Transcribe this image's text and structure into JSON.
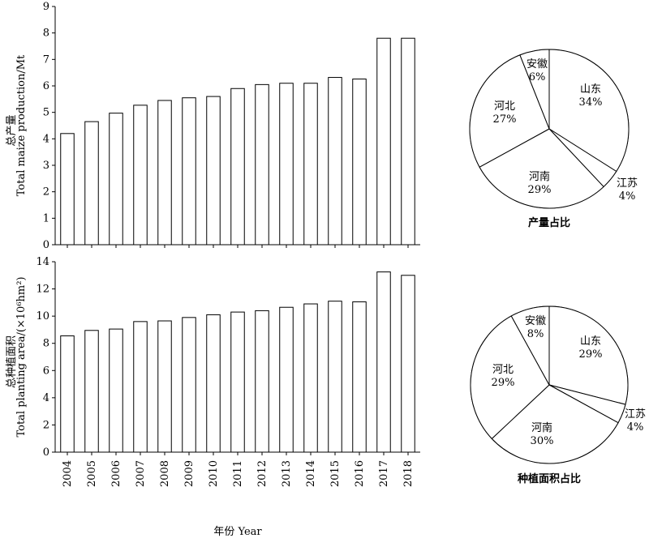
{
  "chart_data": [
    {
      "id": "production",
      "type": "bar",
      "categories": [
        "2004",
        "2005",
        "2006",
        "2007",
        "2008",
        "2009",
        "2010",
        "2011",
        "2012",
        "2013",
        "2014",
        "2015",
        "2016",
        "2017",
        "2018"
      ],
      "values": [
        4.2,
        4.65,
        4.97,
        5.27,
        5.45,
        5.55,
        5.6,
        5.9,
        6.05,
        6.1,
        6.1,
        6.32,
        6.26,
        7.8,
        7.8
      ],
      "ylim": [
        0,
        9
      ],
      "yticks": [
        0,
        1,
        2,
        3,
        4,
        5,
        6,
        7,
        8,
        9
      ],
      "ylabel_zh": "总产量",
      "ylabel_en": "Total maize production/Mt",
      "grid": false
    },
    {
      "id": "area",
      "type": "bar",
      "categories": [
        "2004",
        "2005",
        "2006",
        "2007",
        "2008",
        "2009",
        "2010",
        "2011",
        "2012",
        "2013",
        "2014",
        "2015",
        "2016",
        "2017",
        "2018"
      ],
      "values": [
        8.55,
        8.95,
        9.05,
        9.6,
        9.65,
        9.9,
        10.1,
        10.3,
        10.4,
        10.65,
        10.9,
        11.1,
        11.05,
        13.25,
        13.0
      ],
      "ylim": [
        0,
        14
      ],
      "yticks": [
        0,
        2,
        4,
        6,
        8,
        10,
        12,
        14
      ],
      "ylabel_zh": "总种植面积",
      "ylabel_en": "Total planting area/(×10⁶hm²)",
      "xlabel": "年份 Year",
      "grid": false
    },
    {
      "id": "production-share",
      "type": "pie",
      "title": "产量占比",
      "slices": [
        {
          "label": "山东",
          "percent": 34,
          "text": "34%"
        },
        {
          "label": "江苏",
          "percent": 4,
          "text": "4%"
        },
        {
          "label": "河南",
          "percent": 29,
          "text": "29%"
        },
        {
          "label": "河北",
          "percent": 27,
          "text": "27%"
        },
        {
          "label": "安徽",
          "percent": 6,
          "text": "6%"
        }
      ]
    },
    {
      "id": "area-share",
      "type": "pie",
      "title": "种植面积占比",
      "slices": [
        {
          "label": "山东",
          "percent": 29,
          "text": "29%"
        },
        {
          "label": "江苏",
          "percent": 4,
          "text": "4%"
        },
        {
          "label": "河南",
          "percent": 30,
          "text": "30%"
        },
        {
          "label": "河北",
          "percent": 29,
          "text": "29%"
        },
        {
          "label": "安徽",
          "percent": 8,
          "text": "8%"
        }
      ]
    }
  ]
}
